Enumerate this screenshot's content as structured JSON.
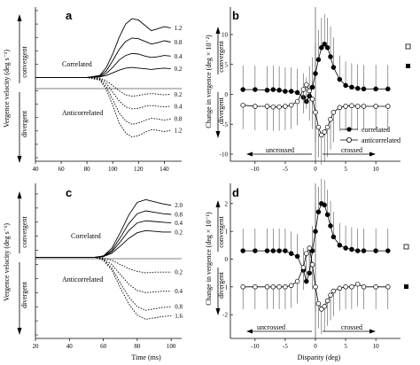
{
  "panels": [
    {
      "id": "a",
      "letter": "a",
      "ylabel": "Vergence velocity (deg s⁻¹)",
      "dir_up": "convergent",
      "dir_down": "divergent",
      "annotations": [
        "Correlated",
        "Anticorrelated"
      ],
      "xticks": [
        "40",
        "60",
        "80",
        "100",
        "120",
        "140"
      ],
      "xlabel": ""
    },
    {
      "id": "b",
      "letter": "b",
      "ylabel": "Change in vergence (deg × 10⁻²)",
      "dir_up": "convergent",
      "dir_down": "divergent",
      "yticks": [
        "10",
        "5",
        "0",
        "-5",
        "-10"
      ],
      "xticks": [
        "-10",
        "-5",
        "0",
        "5",
        "10"
      ],
      "legend": [
        "correlated",
        "anticorrelated"
      ],
      "arrows": [
        "uncrossed",
        "crossed"
      ],
      "xlabel": ""
    },
    {
      "id": "c",
      "letter": "c",
      "ylabel": "Vergence velocity (deg s⁻¹)",
      "dir_up": "convergent",
      "dir_down": "divergent",
      "annotations": [
        "Correlated",
        "Anticorrelated"
      ],
      "xticks": [
        "20",
        "40",
        "60",
        "80",
        "100"
      ],
      "xlabel": "Time (ms)"
    },
    {
      "id": "d",
      "letter": "d",
      "ylabel": "Change in vergence (deg × 10⁻¹)",
      "dir_up": "convergent",
      "dir_down": "divergent",
      "yticks": [
        "2",
        "1",
        "0",
        "-1",
        "-2"
      ],
      "xticks": [
        "-10",
        "-5",
        "0",
        "5",
        "10"
      ],
      "arrows": [
        "uncrossed",
        "crossed"
      ],
      "xlabel": "Disparity (deg)"
    }
  ],
  "chart_data": [
    {
      "panel": "a",
      "type": "line",
      "xlim": [
        40,
        148
      ],
      "ylim": [
        -12,
        10
      ],
      "series": [
        {
          "name": "1.2",
          "style": "solid",
          "x": [
            40,
            60,
            80,
            90,
            95,
            100,
            105,
            110,
            115,
            120,
            125,
            130,
            135,
            140,
            145
          ],
          "y": [
            0,
            0,
            0,
            0.3,
            1.5,
            3.5,
            6,
            8,
            8.8,
            8.6,
            7.8,
            7.0,
            7.3,
            7.6,
            7.4
          ]
        },
        {
          "name": "0.8",
          "style": "solid",
          "x": [
            40,
            60,
            80,
            90,
            95,
            100,
            105,
            110,
            115,
            120,
            125,
            130,
            135,
            140,
            145
          ],
          "y": [
            0,
            0,
            0,
            0.2,
            1,
            2.5,
            4.2,
            5.4,
            5.9,
            5.8,
            5.4,
            5.0,
            5.2,
            5.5,
            5.3
          ]
        },
        {
          "name": "0.4",
          "style": "solid",
          "x": [
            40,
            60,
            80,
            90,
            95,
            100,
            105,
            110,
            115,
            120,
            125,
            130,
            135,
            140,
            145
          ],
          "y": [
            0,
            0,
            0,
            0.1,
            0.6,
            1.5,
            2.6,
            3.3,
            3.6,
            3.5,
            3.2,
            3.0,
            3.1,
            3.3,
            3.2
          ]
        },
        {
          "name": "0.2",
          "style": "solid",
          "x": [
            40,
            60,
            80,
            90,
            95,
            100,
            105,
            110,
            115,
            120,
            125,
            130,
            135,
            140,
            145
          ],
          "y": [
            0,
            0,
            0,
            0.1,
            0.3,
            0.7,
            1.1,
            1.4,
            1.5,
            1.4,
            1.3,
            1.2,
            1.3,
            1.4,
            1.3
          ]
        },
        {
          "name": "0.2",
          "style": "dotted",
          "x": [
            40,
            60,
            80,
            90,
            95,
            100,
            105,
            110,
            115,
            120,
            125,
            130,
            135,
            140,
            145
          ],
          "y": [
            0,
            0,
            0,
            -0.1,
            -0.5,
            -1.2,
            -2,
            -2.6,
            -2.8,
            -2.7,
            -2.5,
            -2.4,
            -2.5,
            -2.6,
            -2.5
          ]
        },
        {
          "name": "0.4",
          "style": "dotted",
          "x": [
            40,
            60,
            80,
            90,
            95,
            100,
            105,
            110,
            115,
            120,
            125,
            130,
            135,
            140,
            145
          ],
          "y": [
            0,
            0,
            0,
            -0.2,
            -0.9,
            -2.2,
            -3.5,
            -4.4,
            -4.7,
            -4.6,
            -4.3,
            -4.2,
            -4.3,
            -4.4,
            -4.3
          ]
        },
        {
          "name": "0.8",
          "style": "dotted",
          "x": [
            40,
            60,
            80,
            90,
            95,
            100,
            105,
            110,
            115,
            120,
            125,
            130,
            135,
            140,
            145
          ],
          "y": [
            0,
            0,
            0,
            -0.3,
            -1.4,
            -3.3,
            -5.3,
            -6.5,
            -7,
            -6.8,
            -6.4,
            -6.1,
            -6.2,
            -6.4,
            -6.2
          ]
        },
        {
          "name": "1.2",
          "style": "dotted",
          "x": [
            40,
            60,
            80,
            90,
            95,
            100,
            105,
            110,
            115,
            120,
            125,
            130,
            135,
            140,
            145
          ],
          "y": [
            0,
            0,
            0,
            -0.4,
            -1.8,
            -4.2,
            -6.8,
            -8.3,
            -8.9,
            -8.7,
            -8.2,
            -7.8,
            -7.9,
            -8.1,
            -7.9
          ]
        }
      ]
    },
    {
      "panel": "b",
      "type": "scatter",
      "xlim": [
        -13.5,
        13.5
      ],
      "ylim": [
        -10,
        14
      ],
      "series": [
        {
          "name": "correlated",
          "marker": "filled",
          "x": [
            -12,
            -10,
            -8,
            -7,
            -6,
            -5,
            -4,
            -3,
            -2,
            -1.5,
            -1,
            -0.5,
            0,
            0.5,
            1,
            1.5,
            2,
            2.5,
            3,
            4,
            5,
            6,
            7,
            8,
            10,
            12
          ],
          "y": [
            0.8,
            0.8,
            0.7,
            0.8,
            0.7,
            0.5,
            0.5,
            0.3,
            -0.5,
            -1.2,
            -0.3,
            1.2,
            3.5,
            5.8,
            7.8,
            8.4,
            7.8,
            6.3,
            4.5,
            2.5,
            1.5,
            1.2,
            1,
            0.9,
            0.9,
            0.9
          ],
          "err": [
            4,
            4,
            4,
            4,
            4,
            4,
            4,
            4,
            4,
            4,
            5,
            5,
            5,
            5,
            5,
            5,
            5,
            5,
            5,
            4,
            4,
            4,
            4,
            4,
            4,
            4
          ]
        },
        {
          "name": "anticorrelated",
          "marker": "open",
          "x": [
            -12,
            -10,
            -8,
            -7,
            -6,
            -5,
            -4,
            -3,
            -2,
            -1.5,
            -1,
            -0.5,
            0,
            0.5,
            1,
            1.5,
            2,
            2.5,
            3,
            4,
            5,
            6,
            7,
            8,
            10,
            12
          ],
          "y": [
            -1.8,
            -2,
            -2,
            -2.1,
            -2.1,
            -2,
            -1.8,
            -1.2,
            0.8,
            1.6,
            0.6,
            -0.8,
            -3,
            -5.5,
            -6.8,
            -6.3,
            -5.5,
            -4.2,
            -3,
            -2.2,
            -2,
            -1.9,
            -2,
            -2,
            -2,
            -2
          ],
          "err": [
            4,
            4,
            4,
            4,
            4,
            4,
            4,
            4,
            4,
            4,
            5,
            5,
            5,
            5,
            5,
            5,
            5,
            5,
            5,
            4,
            4,
            4,
            4,
            4,
            4,
            4
          ]
        }
      ]
    },
    {
      "panel": "c",
      "type": "line",
      "xlim": [
        20,
        102
      ],
      "ylim": [
        -11,
        10
      ],
      "series": [
        {
          "name": "2.0",
          "style": "solid",
          "x": [
            20,
            40,
            55,
            60,
            65,
            70,
            75,
            80,
            85,
            90,
            95,
            100
          ],
          "y": [
            0,
            0,
            0,
            0.2,
            1.3,
            3.5,
            6,
            7.8,
            8.2,
            7.9,
            7.6,
            7.4
          ]
        },
        {
          "name": "0.8",
          "style": "solid",
          "x": [
            20,
            40,
            55,
            60,
            65,
            70,
            75,
            80,
            85,
            90,
            95,
            100
          ],
          "y": [
            0,
            0,
            0,
            0.2,
            1,
            2.8,
            4.8,
            6.2,
            6.6,
            6.4,
            6.2,
            6.1
          ]
        },
        {
          "name": "0.4",
          "style": "solid",
          "x": [
            20,
            40,
            55,
            60,
            65,
            70,
            75,
            80,
            85,
            90,
            95,
            100
          ],
          "y": [
            0,
            0,
            0,
            0.1,
            0.8,
            2.2,
            3.8,
            4.9,
            5.2,
            5.1,
            5,
            4.9
          ]
        },
        {
          "name": "0.2",
          "style": "solid",
          "x": [
            20,
            40,
            55,
            60,
            65,
            70,
            75,
            80,
            85,
            90,
            95,
            100
          ],
          "y": [
            0,
            0,
            0,
            0.1,
            0.6,
            1.6,
            2.7,
            3.5,
            3.8,
            3.7,
            3.6,
            3.6
          ]
        },
        {
          "name": "0.2",
          "style": "dotted",
          "x": [
            20,
            40,
            55,
            60,
            65,
            70,
            75,
            80,
            85,
            90,
            95,
            100
          ],
          "y": [
            0,
            0,
            0,
            -0.1,
            -0.4,
            -1,
            -1.6,
            -2,
            -2.2,
            -2.1,
            -2.1,
            -2.1
          ]
        },
        {
          "name": "0.4",
          "style": "dotted",
          "x": [
            20,
            40,
            55,
            60,
            65,
            70,
            75,
            80,
            85,
            90,
            95,
            100
          ],
          "y": [
            0,
            0,
            0,
            -0.2,
            -1,
            -2.4,
            -3.8,
            -4.7,
            -5,
            -4.9,
            -4.8,
            -4.8
          ]
        },
        {
          "name": "0.8",
          "style": "dotted",
          "x": [
            20,
            40,
            55,
            60,
            65,
            70,
            75,
            80,
            85,
            90,
            95,
            100
          ],
          "y": [
            0,
            0,
            0,
            -0.3,
            -1.5,
            -3.6,
            -5.6,
            -7,
            -7.5,
            -7.3,
            -7.1,
            -7
          ]
        },
        {
          "name": "1.6",
          "style": "dotted",
          "x": [
            20,
            40,
            55,
            60,
            65,
            70,
            75,
            80,
            85,
            90,
            95,
            100
          ],
          "y": [
            0,
            0,
            0,
            -0.4,
            -1.8,
            -4.3,
            -6.6,
            -8.2,
            -8.8,
            -8.6,
            -8.4,
            -8.3
          ]
        }
      ]
    },
    {
      "panel": "d",
      "type": "scatter",
      "xlim": [
        -13.5,
        13.5
      ],
      "ylim": [
        -2.6,
        2.6
      ],
      "series": [
        {
          "name": "correlated",
          "marker": "filled",
          "x": [
            -12,
            -10,
            -8,
            -7,
            -6,
            -5,
            -4,
            -3,
            -2,
            -1.5,
            -1,
            -0.5,
            0,
            0.5,
            1,
            1.5,
            2,
            2.5,
            3,
            4,
            5,
            6,
            7,
            8,
            10,
            12
          ],
          "y": [
            0.3,
            0.3,
            0.3,
            0.3,
            0.3,
            0.3,
            0.2,
            0.1,
            -0.4,
            -0.8,
            -0.5,
            0.3,
            1,
            1.7,
            2,
            1.95,
            1.6,
            1.2,
            0.8,
            0.5,
            0.4,
            0.35,
            0.3,
            0.3,
            0.3,
            0.3
          ],
          "err": [
            0.8,
            0.8,
            0.8,
            0.8,
            0.8,
            0.8,
            0.8,
            0.8,
            0.8,
            0.8,
            0.9,
            0.9,
            0.9,
            0.9,
            0.9,
            0.9,
            0.9,
            0.9,
            0.9,
            0.8,
            0.8,
            0.8,
            0.8,
            0.8,
            0.8,
            0.8
          ]
        },
        {
          "name": "anticorrelated",
          "marker": "open",
          "x": [
            -12,
            -10,
            -8,
            -7,
            -6,
            -5,
            -4,
            -3,
            -2,
            -1.5,
            -1,
            -0.5,
            0,
            0.5,
            1,
            1.5,
            2,
            2.5,
            3,
            4,
            5,
            6,
            7,
            8,
            10,
            12
          ],
          "y": [
            -1,
            -1,
            -1,
            -1,
            -1,
            -1,
            -0.95,
            -0.8,
            -0.3,
            0.2,
            0.4,
            -0.2,
            -1,
            -1.6,
            -1.8,
            -1.7,
            -1.5,
            -1.3,
            -1.15,
            -1.05,
            -1,
            -1,
            -0.9,
            -1,
            -1,
            -1
          ],
          "err": [
            0.8,
            0.8,
            0.8,
            0.8,
            0.8,
            0.8,
            0.8,
            0.8,
            0.8,
            0.8,
            0.9,
            0.9,
            0.9,
            0.9,
            0.9,
            0.9,
            0.9,
            0.9,
            0.9,
            0.8,
            0.8,
            0.8,
            0.8,
            0.8,
            0.8,
            0.8
          ]
        }
      ]
    }
  ]
}
